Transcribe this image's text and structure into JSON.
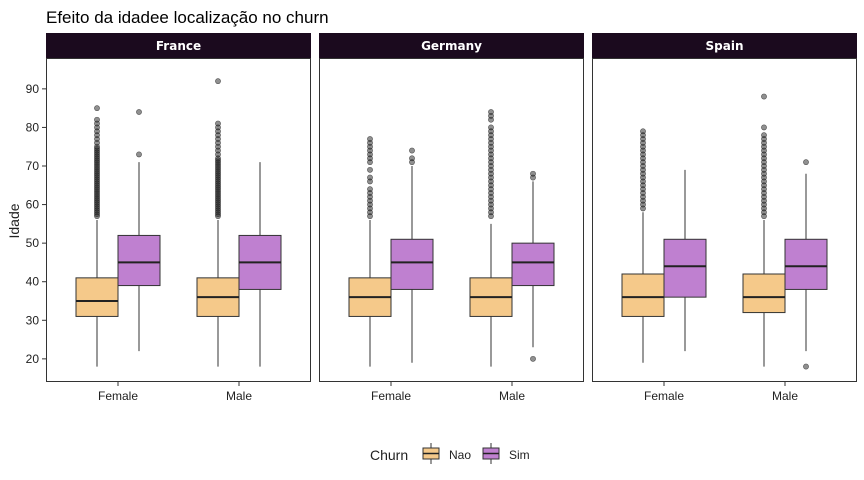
{
  "chart_data": {
    "type": "boxplot",
    "title": "Efeito da idadee localização no churn",
    "ylabel": "Idade",
    "xlabel": "",
    "ylim": [
      14,
      98
    ],
    "yticks": [
      20,
      30,
      40,
      50,
      60,
      70,
      80,
      90
    ],
    "categories": [
      "Female",
      "Male"
    ],
    "legend": {
      "title": "Churn",
      "position": "bottom",
      "labels": [
        "Nao",
        "Sim"
      ]
    },
    "colors": {
      "Nao": "#f5c98a",
      "Sim": "#bf80d0",
      "strip": "#1b0a1e"
    },
    "panels": [
      {
        "name": "France",
        "boxes": [
          {
            "category": "Female",
            "group": "Nao",
            "lower_whisker": 18,
            "q1": 31,
            "median": 35,
            "q3": 41,
            "upper_whisker": 56,
            "outliers": [
              57,
              57.5,
              58,
              58.5,
              59,
              59.5,
              60,
              60.5,
              61,
              61.5,
              62,
              62.5,
              63,
              63.5,
              64,
              64.5,
              65,
              65.5,
              66,
              66.5,
              67,
              67.5,
              68,
              68.5,
              69,
              69.5,
              70,
              70.5,
              71,
              71.5,
              72,
              72.5,
              73,
              73.5,
              74,
              74.5,
              75,
              76,
              77,
              78,
              79,
              80,
              81,
              82,
              85
            ]
          },
          {
            "category": "Female",
            "group": "Sim",
            "lower_whisker": 22,
            "q1": 39,
            "median": 45,
            "q3": 52,
            "upper_whisker": 71,
            "outliers": [
              73,
              84
            ]
          },
          {
            "category": "Male",
            "group": "Nao",
            "lower_whisker": 18,
            "q1": 31,
            "median": 36,
            "q3": 41,
            "upper_whisker": 56,
            "outliers": [
              57,
              57.5,
              58,
              58.5,
              59,
              59.5,
              60,
              60.5,
              61,
              61.5,
              62,
              62.5,
              63,
              63.5,
              64,
              64.5,
              65,
              65.5,
              66,
              66.5,
              67,
              67.5,
              68,
              68.5,
              69,
              69.5,
              70,
              70.5,
              71,
              71.5,
              72,
              73,
              74,
              75,
              76,
              77,
              78,
              79,
              80,
              81,
              92
            ]
          },
          {
            "category": "Male",
            "group": "Sim",
            "lower_whisker": 18,
            "q1": 38,
            "median": 45,
            "q3": 52,
            "upper_whisker": 71,
            "outliers": []
          }
        ]
      },
      {
        "name": "Germany",
        "boxes": [
          {
            "category": "Female",
            "group": "Nao",
            "lower_whisker": 18,
            "q1": 31,
            "median": 36,
            "q3": 41,
            "upper_whisker": 56,
            "outliers": [
              57,
              58,
              59,
              60,
              61,
              62,
              63,
              64,
              66,
              67,
              69,
              71,
              72,
              73,
              74,
              75,
              76,
              77
            ]
          },
          {
            "category": "Female",
            "group": "Sim",
            "lower_whisker": 19,
            "q1": 38,
            "median": 45,
            "q3": 51,
            "upper_whisker": 70,
            "outliers": [
              71,
              72,
              74
            ]
          },
          {
            "category": "Male",
            "group": "Nao",
            "lower_whisker": 18,
            "q1": 31,
            "median": 36,
            "q3": 41,
            "upper_whisker": 55,
            "outliers": [
              57,
              58,
              59,
              60,
              61,
              62,
              63,
              64,
              65,
              66,
              67,
              68,
              69,
              70,
              71,
              72,
              73,
              74,
              75,
              76,
              77,
              78,
              79,
              80,
              82,
              83,
              84
            ]
          },
          {
            "category": "Male",
            "group": "Sim",
            "lower_whisker": 23,
            "q1": 39,
            "median": 45,
            "q3": 50,
            "upper_whisker": 66,
            "outliers": [
              20,
              67,
              68
            ]
          }
        ]
      },
      {
        "name": "Spain",
        "boxes": [
          {
            "category": "Female",
            "group": "Nao",
            "lower_whisker": 19,
            "q1": 31,
            "median": 36,
            "q3": 42,
            "upper_whisker": 58,
            "outliers": [
              59,
              60,
              61,
              62,
              63,
              64,
              65,
              66,
              67,
              68,
              69,
              70,
              71,
              72,
              73,
              74,
              75,
              76,
              77,
              78,
              79
            ]
          },
          {
            "category": "Female",
            "group": "Sim",
            "lower_whisker": 22,
            "q1": 36,
            "median": 44,
            "q3": 51,
            "upper_whisker": 69,
            "outliers": []
          },
          {
            "category": "Male",
            "group": "Nao",
            "lower_whisker": 18,
            "q1": 32,
            "median": 36,
            "q3": 42,
            "upper_whisker": 56,
            "outliers": [
              57,
              58,
              59,
              60,
              61,
              62,
              63,
              64,
              65,
              66,
              67,
              68,
              69,
              70,
              71,
              72,
              73,
              74,
              75,
              76,
              77,
              78,
              80,
              88
            ]
          },
          {
            "category": "Male",
            "group": "Sim",
            "lower_whisker": 22,
            "q1": 38,
            "median": 44,
            "q3": 51,
            "upper_whisker": 68,
            "outliers": [
              18,
              71
            ]
          }
        ]
      }
    ]
  }
}
